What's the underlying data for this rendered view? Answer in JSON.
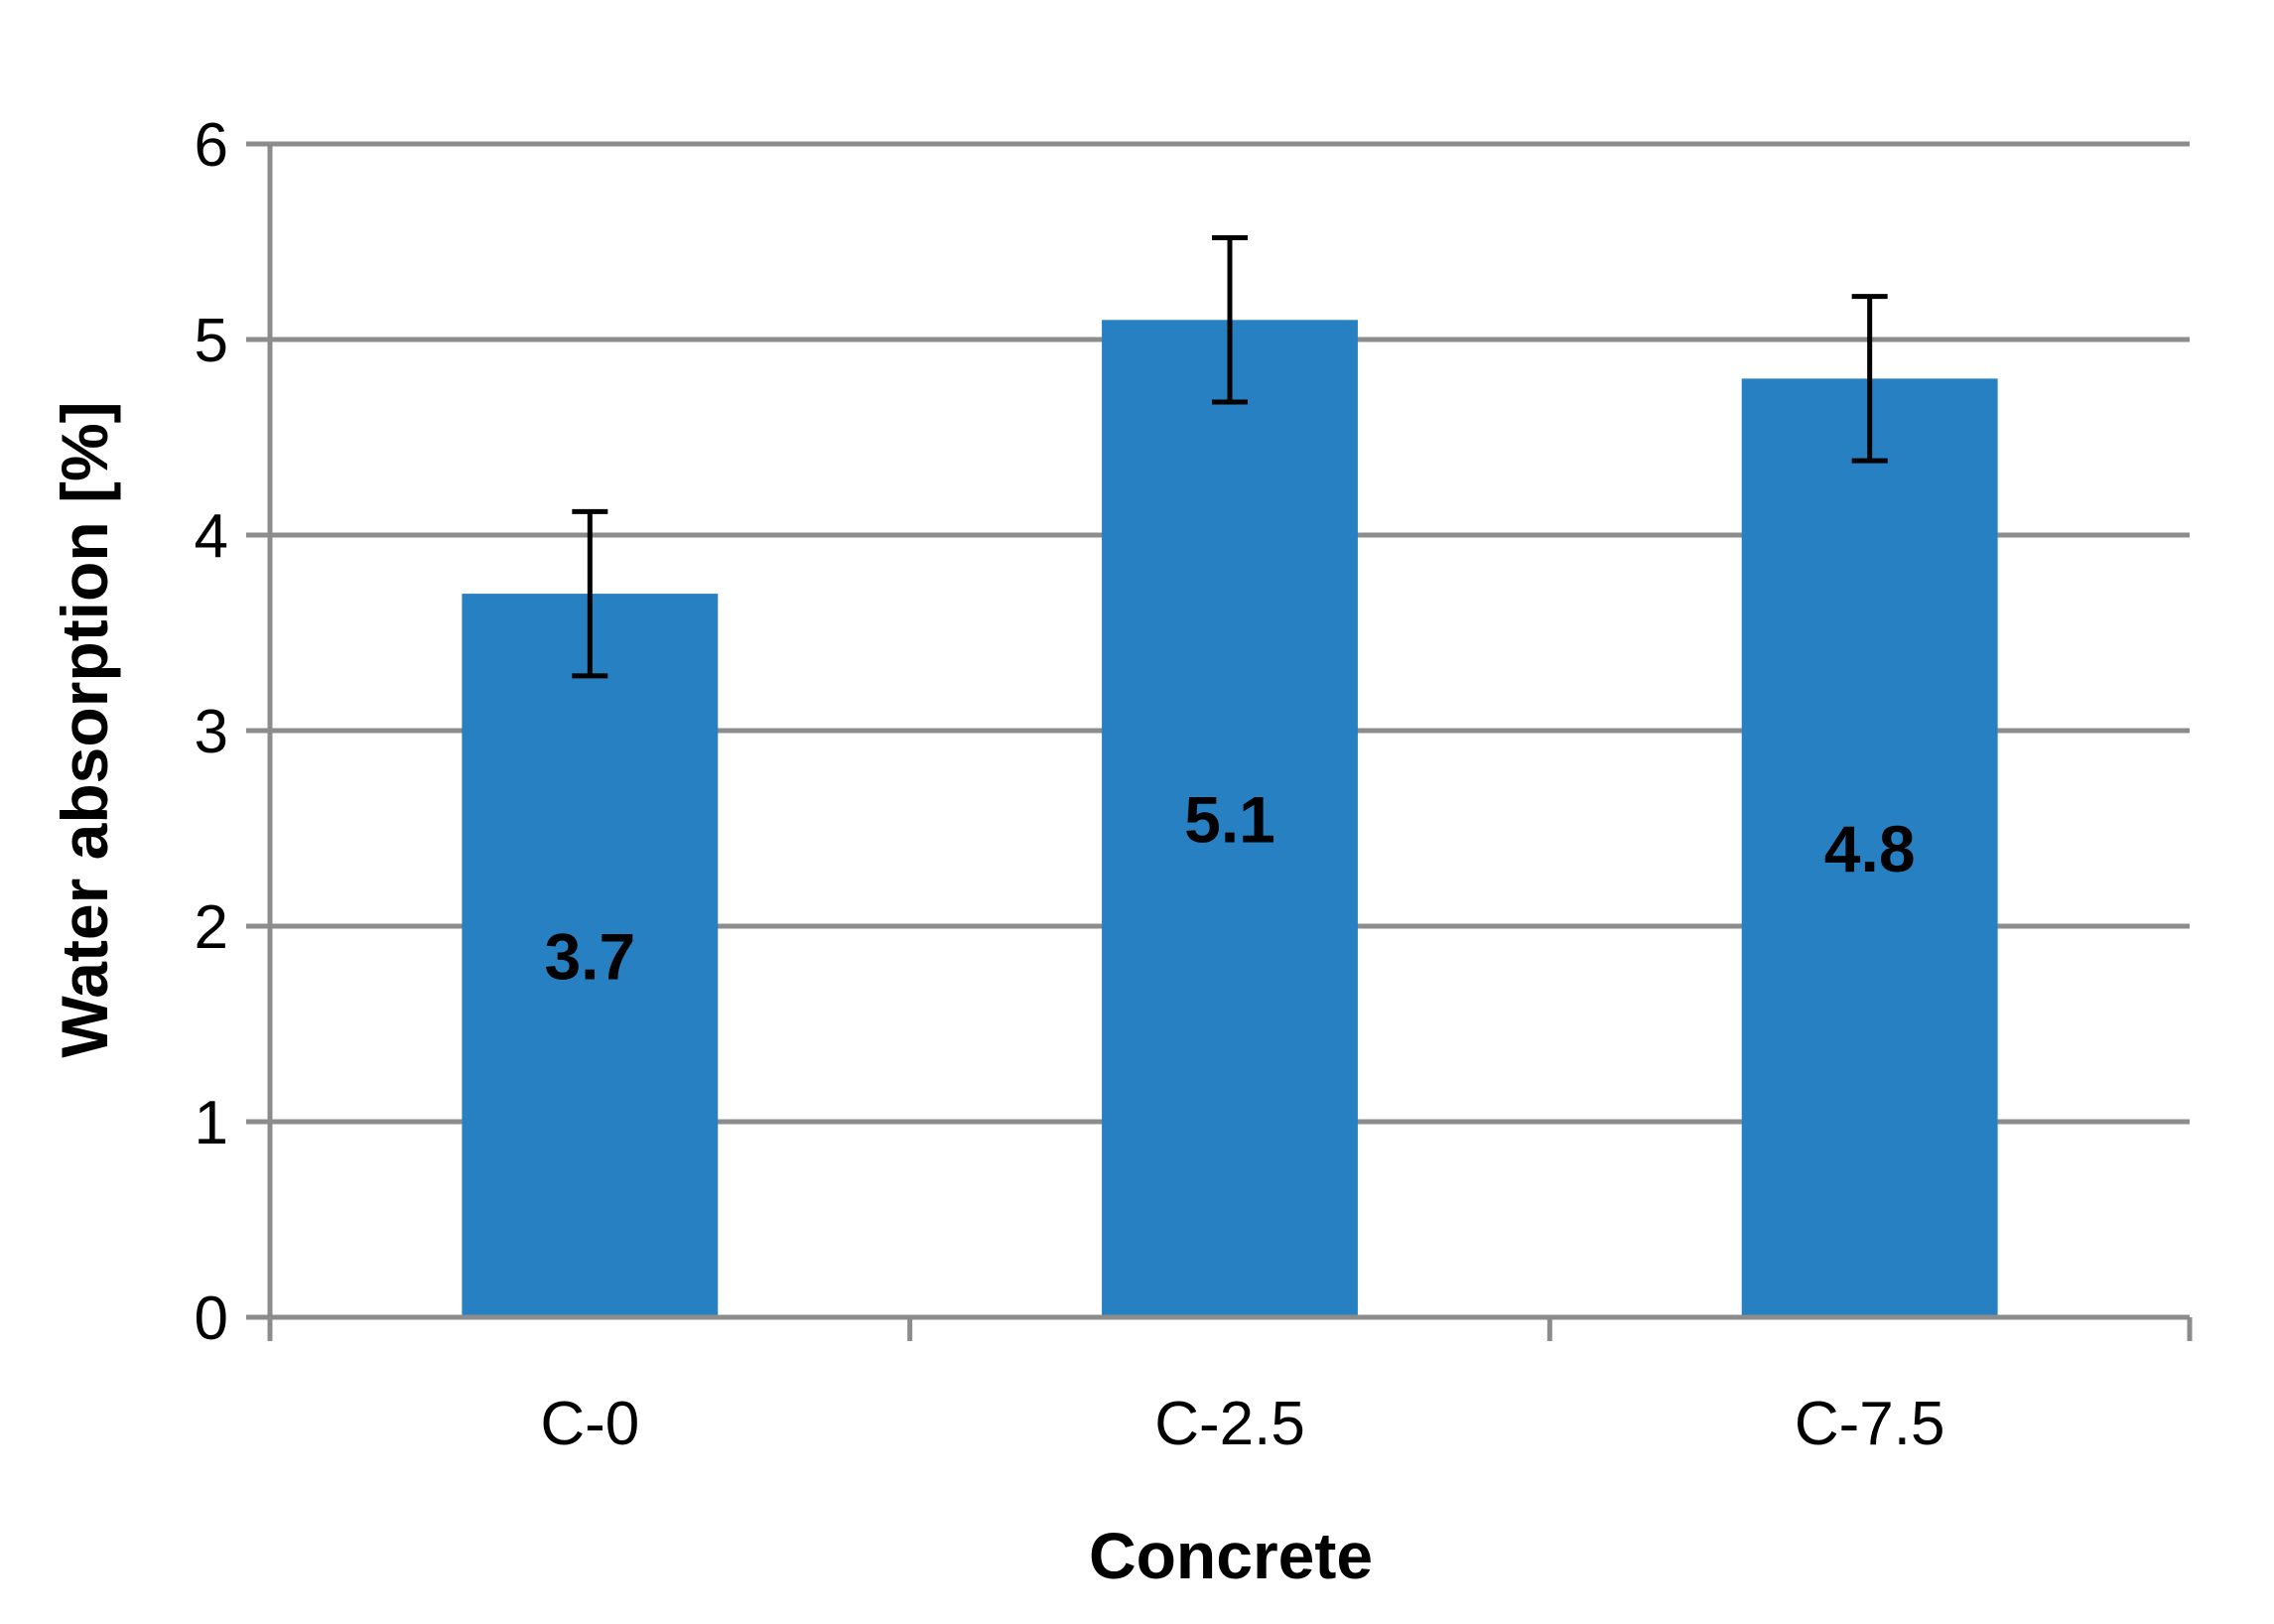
{
  "chart_data": {
    "type": "bar",
    "title": "",
    "xlabel": "Concrete",
    "ylabel": "Water absorption [%]",
    "categories": [
      "C-0",
      "C-2.5",
      "C-7.5"
    ],
    "values": [
      3.7,
      5.1,
      4.8
    ],
    "data_labels": [
      "3.7",
      "5.1",
      "4.8"
    ],
    "error_bars": [
      {
        "low": 3.28,
        "high": 4.12
      },
      {
        "low": 4.68,
        "high": 5.52
      },
      {
        "low": 4.38,
        "high": 5.22
      }
    ],
    "ylim": [
      0,
      6
    ],
    "yticks": [
      0,
      1,
      2,
      3,
      4,
      5,
      6
    ],
    "ytick_labels": [
      "0",
      "1",
      "2",
      "3",
      "4",
      "5",
      "6"
    ],
    "grid": true,
    "legend": "none",
    "colors": {
      "bar": "#2780c1",
      "grid": "#8c8c8c",
      "error_bar": "#000000"
    }
  }
}
